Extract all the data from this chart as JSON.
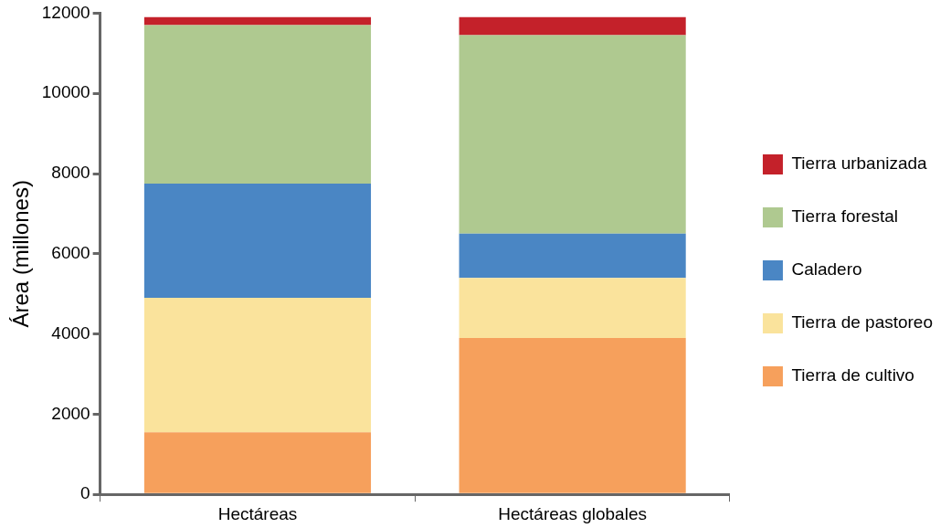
{
  "chart_data": {
    "type": "bar",
    "stacked": true,
    "ylabel": "Área (millones)",
    "categories": [
      "Hectáreas",
      "Hectáreas globales"
    ],
    "series": [
      {
        "name": "Tierra de cultivo",
        "color": "#f6a05c",
        "values": [
          1550,
          3900
        ]
      },
      {
        "name": "Tierra de pastoreo",
        "color": "#fae39c",
        "values": [
          3350,
          1500
        ]
      },
      {
        "name": "Caladero",
        "color": "#4a86c4",
        "values": [
          2850,
          1100
        ]
      },
      {
        "name": "Tierra forestal",
        "color": "#afc990",
        "values": [
          3950,
          4950
        ]
      },
      {
        "name": "Tierra urbanizada",
        "color": "#c4212a",
        "values": [
          200,
          450
        ]
      }
    ],
    "ylim": [
      0,
      12000
    ],
    "yticks": [
      0,
      2000,
      4000,
      6000,
      8000,
      10000,
      12000
    ],
    "grid": false,
    "legend": "right"
  }
}
